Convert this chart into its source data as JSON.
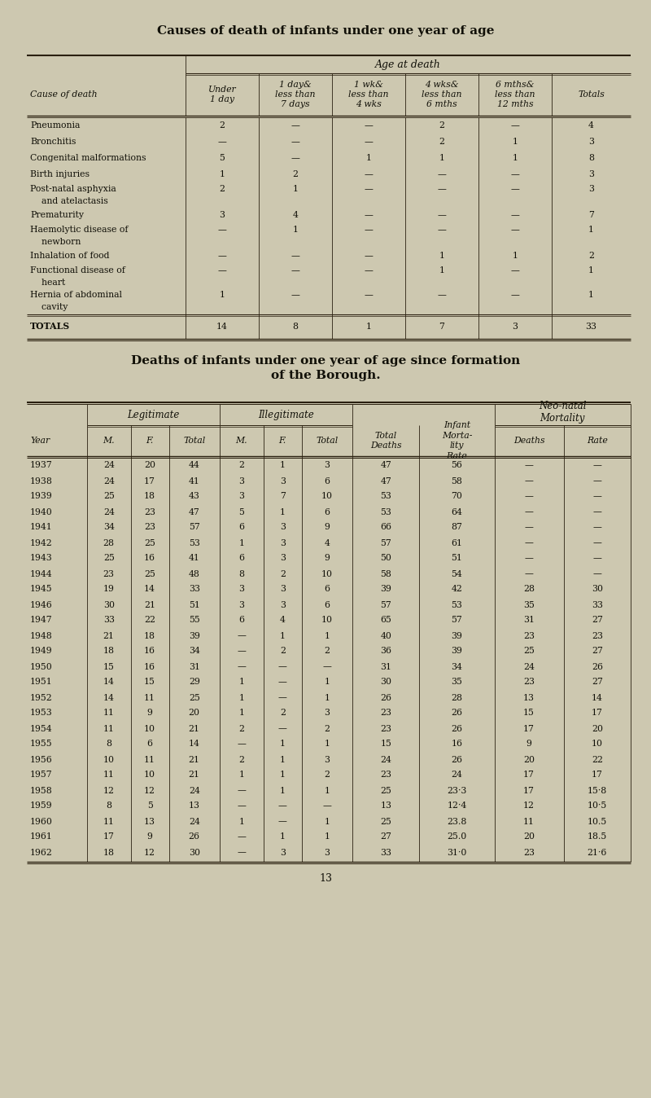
{
  "bg_color": "#cdc8b0",
  "title1": "Causes of death of infants under one year of age",
  "title2": "Deaths of infants under one year of age since formation\nof the Borough.",
  "page_number": "13",
  "t1_col_headers": [
    "Cause of death",
    "Under\n1 day",
    "1 day&\nless than\n7 days",
    "1 wk&\nless than\n4 wks",
    "4 wks&\nless than\n6 mths",
    "6 mths&\nless than\n12 mths",
    "Totals"
  ],
  "t1_rows": [
    [
      "Pneumonia",
      "2",
      "—",
      "—",
      "2",
      "—",
      "4"
    ],
    [
      "Bronchitis",
      "—",
      "—",
      "—",
      "2",
      "1",
      "3"
    ],
    [
      "Congenital malformations",
      "5",
      "—",
      "1",
      "1",
      "1",
      "8"
    ],
    [
      "Birth injuries",
      "1",
      "2",
      "—",
      "—",
      "—",
      "3"
    ],
    [
      "Post-natal asphyxia",
      "2",
      "1",
      "—",
      "—",
      "—",
      "3"
    ],
    [
      "    and atelactasis",
      "",
      "",
      "",
      "",
      "",
      ""
    ],
    [
      "Prematurity",
      "3",
      "4",
      "—",
      "—",
      "—",
      "7"
    ],
    [
      "Haemolytic disease of",
      "—",
      "1",
      "—",
      "—",
      "—",
      "1"
    ],
    [
      "    newborn",
      "",
      "",
      "",
      "",
      "",
      ""
    ],
    [
      "Inhalation of food",
      "—",
      "—",
      "—",
      "1",
      "1",
      "2"
    ],
    [
      "Functional disease of",
      "—",
      "—",
      "—",
      "1",
      "—",
      "1"
    ],
    [
      "    heart",
      "",
      "",
      "",
      "",
      "",
      ""
    ],
    [
      "Hernia of abdominal",
      "1",
      "—",
      "—",
      "—",
      "—",
      "1"
    ],
    [
      "    cavity",
      "",
      "",
      "",
      "",
      "",
      ""
    ],
    [
      "TOTALS",
      "14",
      "8",
      "1",
      "7",
      "3",
      "33"
    ]
  ],
  "t1_total_row": 14,
  "t2_rows": [
    [
      "1937",
      "24",
      "20",
      "44",
      "2",
      "1",
      "3",
      "47",
      "56",
      "—",
      "—"
    ],
    [
      "1938",
      "24",
      "17",
      "41",
      "3",
      "3",
      "6",
      "47",
      "58",
      "—",
      "—"
    ],
    [
      "1939",
      "25",
      "18",
      "43",
      "3",
      "7",
      "10",
      "53",
      "70",
      "—",
      "—"
    ],
    [
      "1940",
      "24",
      "23",
      "47",
      "5",
      "1",
      "6",
      "53",
      "64",
      "—",
      "—"
    ],
    [
      "1941",
      "34",
      "23",
      "57",
      "6",
      "3",
      "9",
      "66",
      "87",
      "—",
      "—"
    ],
    [
      "1942",
      "28",
      "25",
      "53",
      "1",
      "3",
      "4",
      "57",
      "61",
      "—",
      "—"
    ],
    [
      "1943",
      "25",
      "16",
      "41",
      "6",
      "3",
      "9",
      "50",
      "51",
      "—",
      "—"
    ],
    [
      "1944",
      "23",
      "25",
      "48",
      "8",
      "2",
      "10",
      "58",
      "54",
      "—",
      "—"
    ],
    [
      "1945",
      "19",
      "14",
      "33",
      "3",
      "3",
      "6",
      "39",
      "42",
      "28",
      "30"
    ],
    [
      "1946",
      "30",
      "21",
      "51",
      "3",
      "3",
      "6",
      "57",
      "53",
      "35",
      "33"
    ],
    [
      "1947",
      "33",
      "22",
      "55",
      "6",
      "4",
      "10",
      "65",
      "57",
      "31",
      "27"
    ],
    [
      "1948",
      "21",
      "18",
      "39",
      "—",
      "1",
      "1",
      "40",
      "39",
      "23",
      "23"
    ],
    [
      "1949",
      "18",
      "16",
      "34",
      "—",
      "2",
      "2",
      "36",
      "39",
      "25",
      "27"
    ],
    [
      "1950",
      "15",
      "16",
      "31",
      "—",
      "—",
      "—",
      "31",
      "34",
      "24",
      "26"
    ],
    [
      "1951",
      "14",
      "15",
      "29",
      "1",
      "—",
      "1",
      "30",
      "35",
      "23",
      "27"
    ],
    [
      "1952",
      "14",
      "11",
      "25",
      "1",
      "—",
      "1",
      "26",
      "28",
      "13",
      "14"
    ],
    [
      "1953",
      "11",
      "9",
      "20",
      "1",
      "2",
      "3",
      "23",
      "26",
      "15",
      "17"
    ],
    [
      "1954",
      "11",
      "10",
      "21",
      "2",
      "—",
      "2",
      "23",
      "26",
      "17",
      "20"
    ],
    [
      "1955",
      "8",
      "6",
      "14",
      "—",
      "1",
      "1",
      "15",
      "16",
      "9",
      "10"
    ],
    [
      "1956",
      "10",
      "11",
      "21",
      "2",
      "1",
      "3",
      "24",
      "26",
      "20",
      "22"
    ],
    [
      "1957",
      "11",
      "10",
      "21",
      "1",
      "1",
      "2",
      "23",
      "24",
      "17",
      "17"
    ],
    [
      "1958",
      "12",
      "12",
      "24",
      "—",
      "1",
      "1",
      "25",
      "23·3",
      "17",
      "15·8"
    ],
    [
      "1959",
      "8",
      "5",
      "13",
      "—",
      "—",
      "—",
      "13",
      "12·4",
      "12",
      "10·5"
    ],
    [
      "1960",
      "11",
      "13",
      "24",
      "1",
      "—",
      "1",
      "25",
      "23.8",
      "11",
      "10.5"
    ],
    [
      "1961",
      "17",
      "9",
      "26",
      "—",
      "1",
      "1",
      "27",
      "25.0",
      "20",
      "18.5"
    ],
    [
      "1962",
      "18",
      "12",
      "30",
      "—",
      "3",
      "3",
      "33",
      "31·0",
      "23",
      "21·6"
    ]
  ]
}
